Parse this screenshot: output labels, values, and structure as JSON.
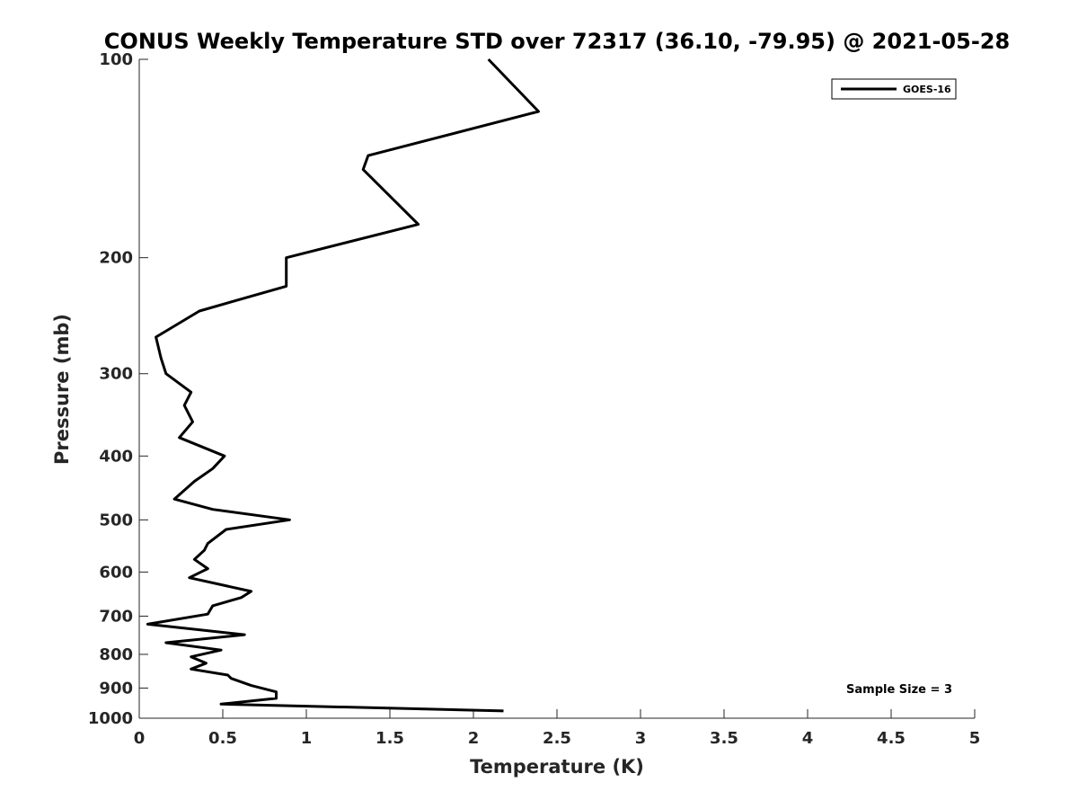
{
  "chart_data": {
    "type": "line",
    "title": "CONUS Weekly Temperature STD over 72317 (36.10, -79.95) @ 2021-05-28",
    "xlabel": "Temperature (K)",
    "ylabel": "Pressure (mb)",
    "xlim": [
      0,
      5
    ],
    "ylim": [
      100,
      1000
    ],
    "yscale": "log",
    "y_reversed": true,
    "xticks": [
      0,
      0.5,
      1,
      1.5,
      2,
      2.5,
      3,
      3.5,
      4,
      4.5,
      5
    ],
    "xtick_labels": [
      "0",
      "0.5",
      "1",
      "1.5",
      "2",
      "2.5",
      "3",
      "3.5",
      "4",
      "4.5",
      "5"
    ],
    "yticks": [
      100,
      200,
      300,
      400,
      500,
      600,
      700,
      800,
      900,
      1000
    ],
    "ytick_labels": [
      "100",
      "200",
      "300",
      "400",
      "500",
      "600",
      "700",
      "800",
      "900",
      "1000"
    ],
    "grid": false,
    "legend_position": "top-right",
    "annotation": "Sample Size = 3",
    "series": [
      {
        "name": "GOES-16",
        "color": "#000000",
        "points": [
          [
            2.09,
            100
          ],
          [
            2.39,
            120
          ],
          [
            1.37,
            140
          ],
          [
            1.34,
            147
          ],
          [
            1.67,
            178
          ],
          [
            0.88,
            200
          ],
          [
            0.88,
            221
          ],
          [
            0.36,
            241
          ],
          [
            0.1,
            264
          ],
          [
            0.13,
            284
          ],
          [
            0.16,
            300
          ],
          [
            0.31,
            320
          ],
          [
            0.27,
            335
          ],
          [
            0.32,
            355
          ],
          [
            0.24,
            375
          ],
          [
            0.51,
            400
          ],
          [
            0.44,
            418
          ],
          [
            0.33,
            437
          ],
          [
            0.21,
            465
          ],
          [
            0.44,
            482
          ],
          [
            0.9,
            500
          ],
          [
            0.52,
            517
          ],
          [
            0.41,
            543
          ],
          [
            0.39,
            556
          ],
          [
            0.33,
            574
          ],
          [
            0.41,
            593
          ],
          [
            0.3,
            612
          ],
          [
            0.67,
            642
          ],
          [
            0.61,
            656
          ],
          [
            0.44,
            675
          ],
          [
            0.41,
            695
          ],
          [
            0.05,
            720
          ],
          [
            0.63,
            747
          ],
          [
            0.16,
            768
          ],
          [
            0.49,
            788
          ],
          [
            0.31,
            807
          ],
          [
            0.4,
            825
          ],
          [
            0.31,
            842
          ],
          [
            0.53,
            860
          ],
          [
            0.55,
            870
          ],
          [
            0.67,
            892
          ],
          [
            0.82,
            912
          ],
          [
            0.82,
            933
          ],
          [
            0.49,
            952
          ],
          [
            2.18,
            975
          ]
        ]
      }
    ]
  }
}
